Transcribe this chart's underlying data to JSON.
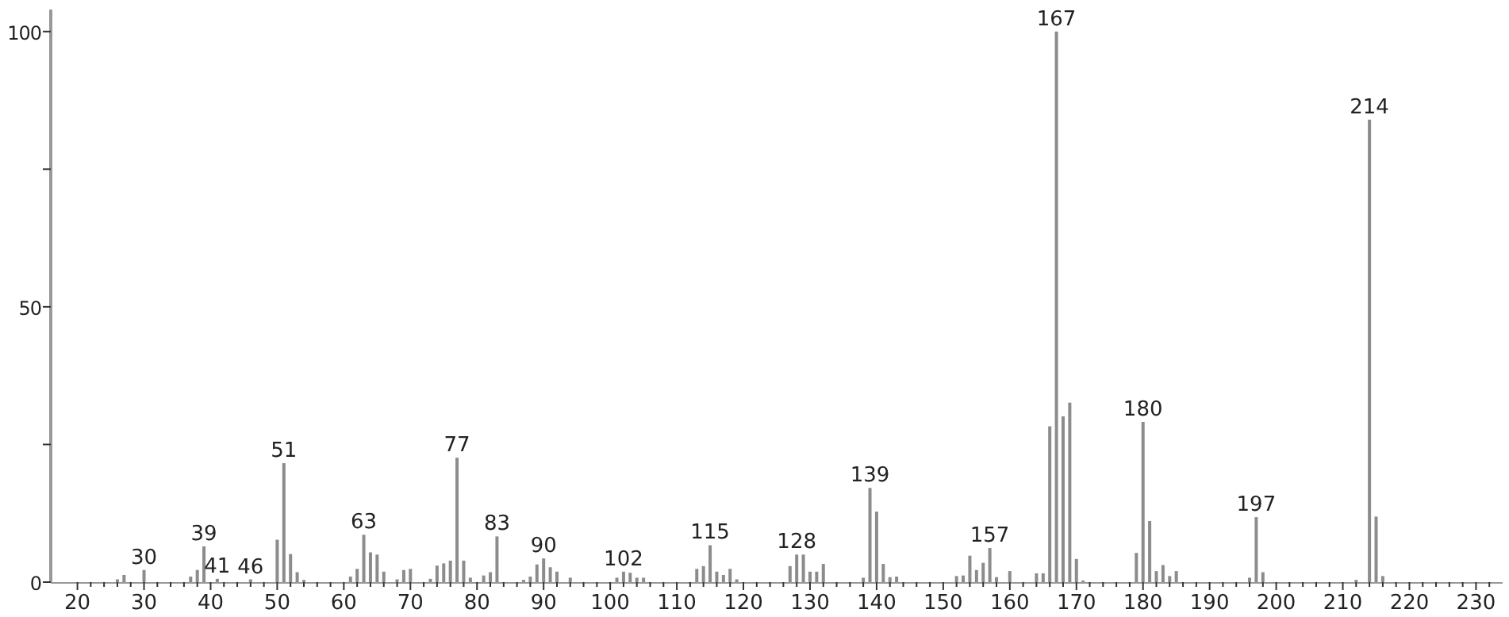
{
  "chart_data": {
    "type": "bar",
    "color": "#8c8c8c",
    "x": [
      26,
      27,
      30,
      37,
      38,
      39,
      41,
      46,
      50,
      51,
      52,
      53,
      54,
      61,
      62,
      63,
      64,
      65,
      66,
      68,
      69,
      70,
      73,
      74,
      75,
      76,
      77,
      78,
      79,
      81,
      82,
      83,
      87,
      88,
      89,
      90,
      91,
      92,
      94,
      101,
      102,
      103,
      104,
      105,
      113,
      114,
      115,
      116,
      117,
      118,
      119,
      127,
      128,
      129,
      130,
      131,
      132,
      138,
      139,
      140,
      141,
      142,
      143,
      152,
      153,
      154,
      155,
      156,
      157,
      158,
      160,
      164,
      165,
      166,
      167,
      168,
      169,
      170,
      171,
      179,
      180,
      181,
      182,
      183,
      184,
      185,
      196,
      197,
      198,
      212,
      214,
      215,
      216
    ],
    "values": [
      0.5,
      1.3,
      2.2,
      1.0,
      2.2,
      6.5,
      0.6,
      0.5,
      7.7,
      21.6,
      5.1,
      1.8,
      0.4,
      1.0,
      2.4,
      8.6,
      5.4,
      5.0,
      1.9,
      0.5,
      2.2,
      2.4,
      0.6,
      3.0,
      3.4,
      3.9,
      22.6,
      3.9,
      0.8,
      1.2,
      1.8,
      8.3,
      0.4,
      1.0,
      3.2,
      4.3,
      2.7,
      1.9,
      0.8,
      0.8,
      1.9,
      1.7,
      0.8,
      0.8,
      2.4,
      2.9,
      6.7,
      1.9,
      1.3,
      2.4,
      0.5,
      2.9,
      5.0,
      5.0,
      1.9,
      1.9,
      3.3,
      0.8,
      17.1,
      12.8,
      3.3,
      0.9,
      1.0,
      1.1,
      1.2,
      4.8,
      2.2,
      3.5,
      6.2,
      0.9,
      2.0,
      1.6,
      1.6,
      28.3,
      100,
      30.1,
      32.6,
      4.2,
      0.3,
      5.3,
      29.1,
      11.1,
      2.0,
      3.1,
      1.1,
      2.0,
      0.8,
      11.8,
      1.8,
      0.4,
      84,
      11.9,
      1.1
    ],
    "xlim": [
      16,
      234
    ],
    "ylim": [
      0,
      104
    ],
    "xticks": [
      20,
      {
        "value": 22,
        "label": null
      },
      {
        "value": 24,
        "label": null
      },
      {
        "value": 26,
        "label": null
      },
      {
        "value": 28,
        "label": null
      },
      30,
      {
        "value": 32,
        "label": null
      },
      {
        "value": 34,
        "label": null
      },
      {
        "value": 36,
        "label": null
      },
      {
        "value": 38,
        "label": null
      },
      40,
      {
        "value": 42,
        "label": null
      },
      {
        "value": 44,
        "label": null
      },
      {
        "value": 46,
        "label": null
      },
      {
        "value": 48,
        "label": null
      },
      50,
      {
        "value": 52,
        "label": null
      },
      {
        "value": 54,
        "label": null
      },
      {
        "value": 56,
        "label": null
      },
      {
        "value": 58,
        "label": null
      },
      60,
      {
        "value": 62,
        "label": null
      },
      {
        "value": 64,
        "label": null
      },
      {
        "value": 66,
        "label": null
      },
      {
        "value": 68,
        "label": null
      },
      70,
      {
        "value": 72,
        "label": null
      },
      {
        "value": 74,
        "label": null
      },
      {
        "value": 76,
        "label": null
      },
      {
        "value": 78,
        "label": null
      },
      80,
      {
        "value": 82,
        "label": null
      },
      {
        "value": 84,
        "label": null
      },
      {
        "value": 86,
        "label": null
      },
      {
        "value": 88,
        "label": null
      },
      90,
      {
        "value": 92,
        "label": null
      },
      {
        "value": 94,
        "label": null
      },
      {
        "value": 96,
        "label": null
      },
      {
        "value": 98,
        "label": null
      },
      100,
      {
        "value": 102,
        "label": null
      },
      {
        "value": 104,
        "label": null
      },
      {
        "value": 106,
        "label": null
      },
      {
        "value": 108,
        "label": null
      },
      110,
      {
        "value": 112,
        "label": null
      },
      {
        "value": 114,
        "label": null
      },
      {
        "value": 116,
        "label": null
      },
      {
        "value": 118,
        "label": null
      },
      120,
      {
        "value": 122,
        "label": null
      },
      {
        "value": 124,
        "label": null
      },
      {
        "value": 126,
        "label": null
      },
      {
        "value": 128,
        "label": null
      },
      130,
      {
        "value": 132,
        "label": null
      },
      {
        "value": 134,
        "label": null
      },
      {
        "value": 136,
        "label": null
      },
      {
        "value": 138,
        "label": null
      },
      140,
      {
        "value": 142,
        "label": null
      },
      {
        "value": 144,
        "label": null
      },
      {
        "value": 146,
        "label": null
      },
      {
        "value": 148,
        "label": null
      },
      150,
      {
        "value": 152,
        "label": null
      },
      {
        "value": 154,
        "label": null
      },
      {
        "value": 156,
        "label": null
      },
      {
        "value": 158,
        "label": null
      },
      160,
      {
        "value": 162,
        "label": null
      },
      {
        "value": 164,
        "label": null
      },
      {
        "value": 166,
        "label": null
      },
      {
        "value": 168,
        "label": null
      },
      170,
      {
        "value": 172,
        "label": null
      },
      {
        "value": 174,
        "label": null
      },
      {
        "value": 176,
        "label": null
      },
      {
        "value": 178,
        "label": null
      },
      180,
      {
        "value": 182,
        "label": null
      },
      {
        "value": 184,
        "label": null
      },
      {
        "value": 186,
        "label": null
      },
      {
        "value": 188,
        "label": null
      },
      190,
      {
        "value": 192,
        "label": null
      },
      {
        "value": 194,
        "label": null
      },
      {
        "value": 196,
        "label": null
      },
      {
        "value": 198,
        "label": null
      },
      200,
      {
        "value": 202,
        "label": null
      },
      {
        "value": 204,
        "label": null
      },
      {
        "value": 206,
        "label": null
      },
      {
        "value": 208,
        "label": null
      },
      210,
      {
        "value": 212,
        "label": null
      },
      {
        "value": 214,
        "label": null
      },
      {
        "value": 216,
        "label": null
      },
      {
        "value": 218,
        "label": null
      },
      220,
      {
        "value": 222,
        "label": null
      },
      {
        "value": 224,
        "label": null
      },
      {
        "value": 226,
        "label": null
      },
      {
        "value": 228,
        "label": null
      },
      230,
      {
        "value": 232,
        "label": null
      }
    ],
    "yticks": [
      0,
      {
        "value": 25,
        "label": null
      },
      50,
      {
        "value": 75,
        "label": null
      },
      100
    ],
    "annotations": [
      {
        "text": "30",
        "x": 30,
        "y": 2.2
      },
      {
        "text": "39",
        "x": 39,
        "y": 6.5
      },
      {
        "text": "41",
        "x": 41,
        "y": 0.6
      },
      {
        "text": "46",
        "x": 46,
        "y": 0.5
      },
      {
        "text": "51",
        "x": 51,
        "y": 21.6
      },
      {
        "text": "63",
        "x": 63,
        "y": 8.6
      },
      {
        "text": "77",
        "x": 77,
        "y": 22.6
      },
      {
        "text": "83",
        "x": 83,
        "y": 8.3
      },
      {
        "text": "90",
        "x": 90,
        "y": 4.3
      },
      {
        "text": "102",
        "x": 102,
        "y": 1.9
      },
      {
        "text": "115",
        "x": 115,
        "y": 6.7
      },
      {
        "text": "128",
        "x": 128,
        "y": 5.0
      },
      {
        "text": "139",
        "x": 139,
        "y": 17.1
      },
      {
        "text": "157",
        "x": 157,
        "y": 6.2
      },
      {
        "text": "167",
        "x": 167,
        "y": 100
      },
      {
        "text": "180",
        "x": 180,
        "y": 29.1
      },
      {
        "text": "197",
        "x": 197,
        "y": 11.8
      },
      {
        "text": "214",
        "x": 214,
        "y": 84
      }
    ]
  }
}
